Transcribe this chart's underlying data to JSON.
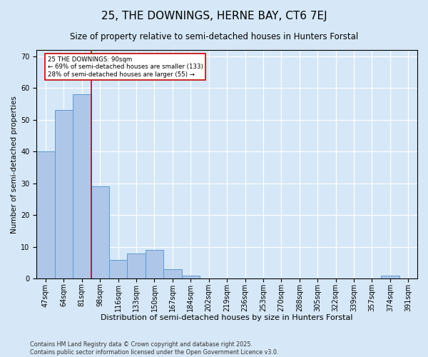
{
  "title": "25, THE DOWNINGS, HERNE BAY, CT6 7EJ",
  "subtitle": "Size of property relative to semi-detached houses in Hunters Forstal",
  "xlabel": "Distribution of semi-detached houses by size in Hunters Forstal",
  "ylabel": "Number of semi-detached properties",
  "categories": [
    "47sqm",
    "64sqm",
    "81sqm",
    "98sqm",
    "116sqm",
    "133sqm",
    "150sqm",
    "167sqm",
    "184sqm",
    "202sqm",
    "219sqm",
    "236sqm",
    "253sqm",
    "270sqm",
    "288sqm",
    "305sqm",
    "322sqm",
    "339sqm",
    "357sqm",
    "374sqm",
    "391sqm"
  ],
  "values": [
    40,
    53,
    58,
    29,
    6,
    8,
    9,
    3,
    1,
    0,
    0,
    0,
    0,
    0,
    0,
    0,
    0,
    0,
    0,
    1,
    0
  ],
  "bar_color": "#aec6e8",
  "bar_edge_color": "#5b9bd5",
  "background_color": "#d6e8f7",
  "grid_color": "#ffffff",
  "vline_color": "#cc0000",
  "annotation_text": "25 THE DOWNINGS: 90sqm\n← 69% of semi-detached houses are smaller (133)\n28% of semi-detached houses are larger (55) →",
  "annotation_box_color": "#ffffff",
  "annotation_box_edge": "#cc0000",
  "ylim": [
    0,
    72
  ],
  "yticks": [
    0,
    10,
    20,
    30,
    40,
    50,
    60,
    70
  ],
  "footer": "Contains HM Land Registry data © Crown copyright and database right 2025.\nContains public sector information licensed under the Open Government Licence v3.0.",
  "title_fontsize": 11,
  "subtitle_fontsize": 8.5,
  "xlabel_fontsize": 8,
  "ylabel_fontsize": 7.5,
  "tick_fontsize": 7,
  "footer_fontsize": 5.8,
  "vline_pos": 2.5
}
